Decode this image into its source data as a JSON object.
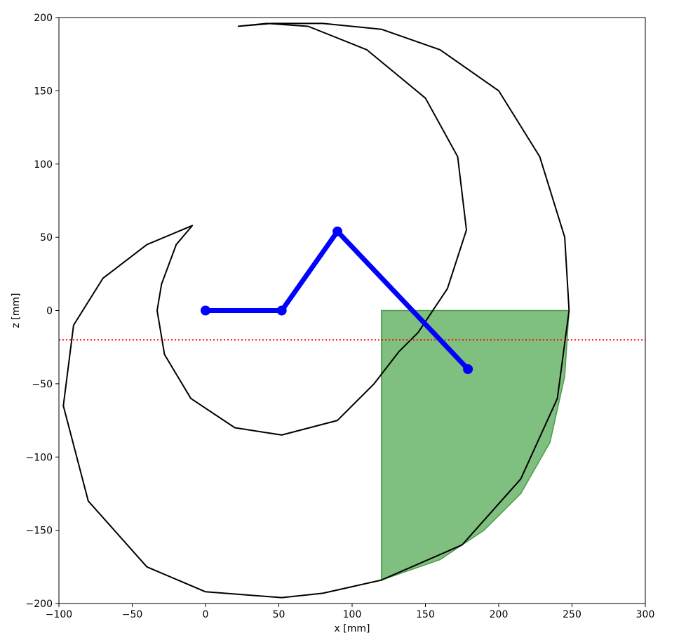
{
  "chart_data": {
    "type": "line",
    "xlabel": "x [mm]",
    "ylabel": "z [mm]",
    "xlim": [
      -100,
      300
    ],
    "ylim": [
      -200,
      200
    ],
    "xticks": [
      -100,
      -50,
      0,
      50,
      100,
      150,
      200,
      250,
      300
    ],
    "yticks": [
      -200,
      -150,
      -100,
      -50,
      0,
      50,
      100,
      150,
      200
    ],
    "xtick_labels": [
      "−100",
      "−50",
      "0",
      "50",
      "100",
      "150",
      "200",
      "250",
      "300"
    ],
    "ytick_labels": [
      "−200",
      "−150",
      "−100",
      "−50",
      "0",
      "50",
      "100",
      "150",
      "200"
    ],
    "grid": false,
    "colors": {
      "arm": "#0000ff",
      "workspace": "#000000",
      "region_fill": "#7fbf7f",
      "region_edge": "#4c994c",
      "threshold": "#ff0000"
    },
    "arm": {
      "joints": [
        [
          0,
          0
        ],
        [
          52,
          0
        ],
        [
          90,
          54
        ],
        [
          179,
          -40
        ]
      ]
    },
    "threshold_line": {
      "z": -20
    },
    "workspace_outer": [
      [
        22,
        194
      ],
      [
        45,
        196
      ],
      [
        80,
        196
      ],
      [
        120,
        192
      ],
      [
        160,
        178
      ],
      [
        200,
        150
      ],
      [
        228,
        105
      ],
      [
        245,
        50
      ],
      [
        248,
        0
      ],
      [
        240,
        -60
      ],
      [
        215,
        -115
      ],
      [
        175,
        -160
      ],
      [
        120,
        -184
      ],
      [
        80,
        -193
      ],
      [
        52,
        -196
      ],
      [
        0,
        -192
      ],
      [
        -40,
        -175
      ],
      [
        -80,
        -130
      ],
      [
        -97,
        -65
      ],
      [
        -90,
        -10
      ],
      [
        -70,
        22
      ],
      [
        -40,
        45
      ],
      [
        -9,
        58
      ],
      [
        -20,
        45
      ],
      [
        -30,
        18
      ],
      [
        -33,
        0
      ],
      [
        -28,
        -30
      ],
      [
        -10,
        -60
      ],
      [
        20,
        -80
      ],
      [
        52,
        -85
      ],
      [
        90,
        -75
      ],
      [
        115,
        -50
      ],
      [
        132,
        -28
      ],
      [
        145,
        -15
      ],
      [
        165,
        15
      ],
      [
        178,
        55
      ],
      [
        172,
        105
      ],
      [
        150,
        145
      ],
      [
        110,
        178
      ],
      [
        70,
        194
      ],
      [
        42,
        196
      ],
      [
        22,
        194
      ]
    ],
    "region": {
      "x_min": 120,
      "z_top": 0,
      "boundary": [
        [
          120,
          0
        ],
        [
          248,
          0
        ],
        [
          245,
          -45
        ],
        [
          235,
          -90
        ],
        [
          215,
          -125
        ],
        [
          190,
          -150
        ],
        [
          160,
          -170
        ],
        [
          120,
          -184
        ],
        [
          120,
          0
        ]
      ]
    }
  }
}
